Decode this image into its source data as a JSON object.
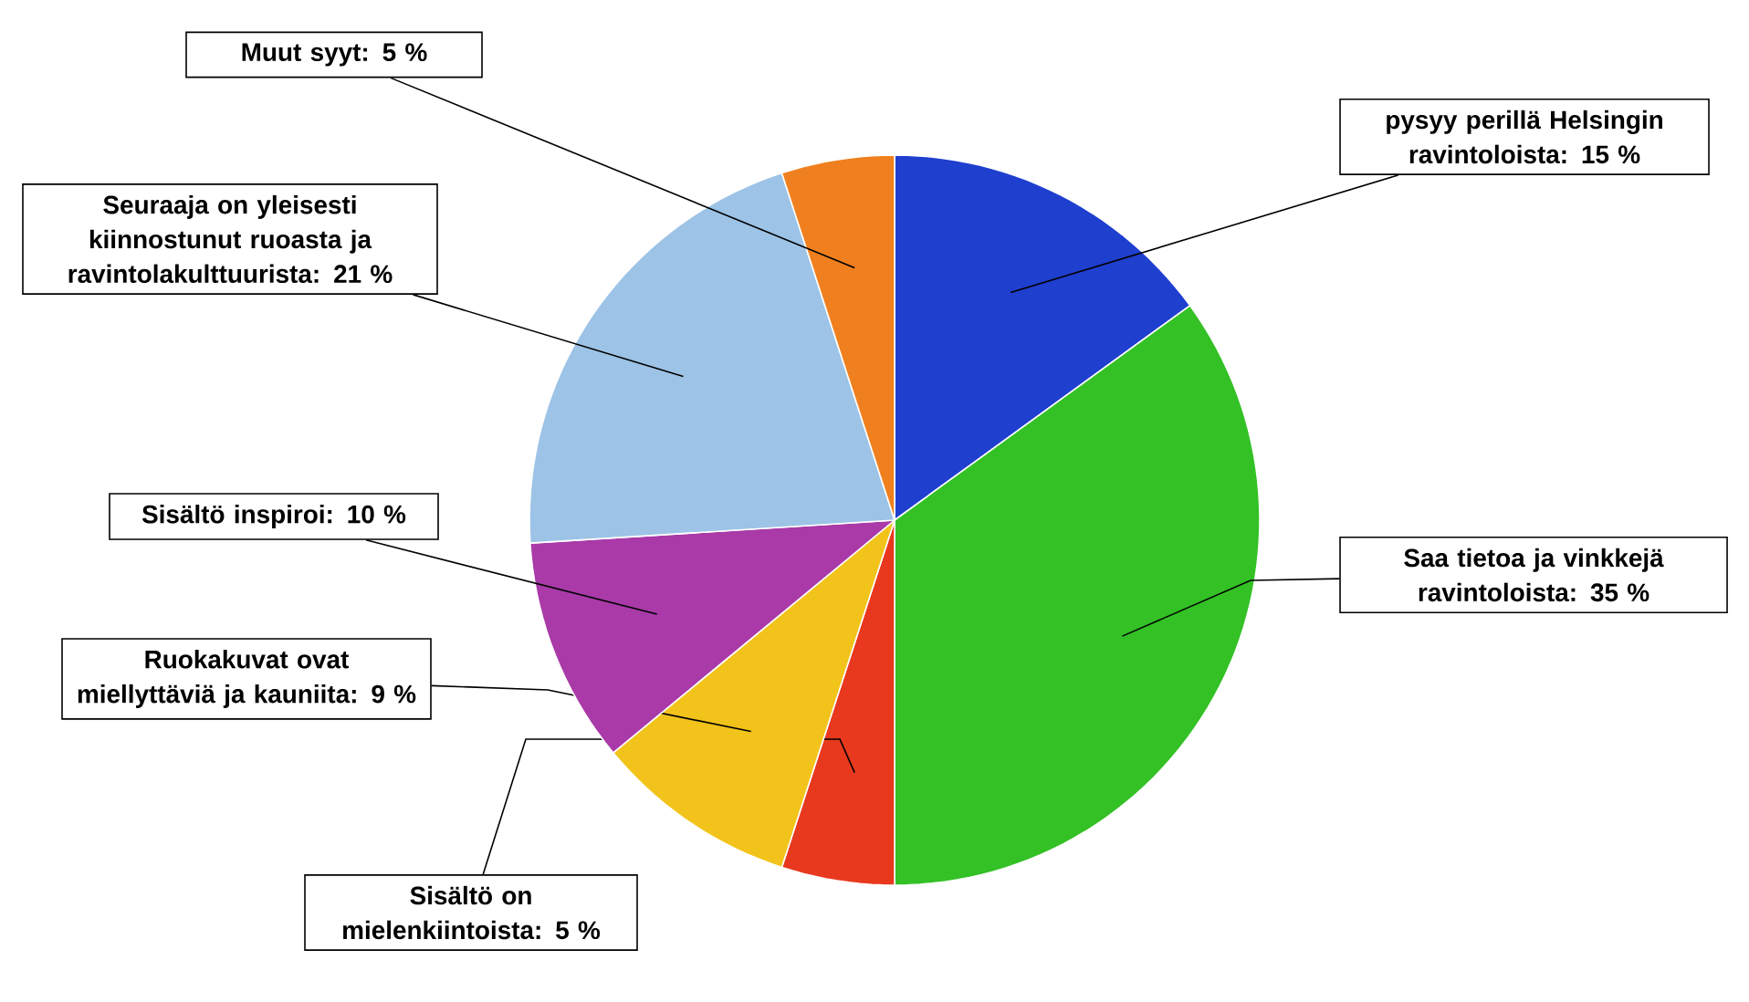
{
  "chart_data": {
    "type": "pie",
    "categories": [
      "pysyy perillä Helsingin ravintoloista",
      "Saa tietoa ja vinkkejä ravintoloista",
      "Sisältö on mielenkiintoista",
      "Ruokakuvat ovat miellyttäviä ja kauniita",
      "Sisältö inspiroi",
      "Seuraaja on yleisesti kiinnostunut ruoasta ja ravintolakulttuurista",
      "Muut syyt"
    ],
    "values": [
      15,
      35,
      5,
      9,
      10,
      21,
      5
    ],
    "value_labels": [
      ": 15 %",
      ": 35 %",
      ": 5 %",
      ": 9 %",
      ": 10 %",
      ": 21 %",
      ": 5 %"
    ],
    "colors": [
      "#1f3fcf",
      "#33c125",
      "#e8391e",
      "#f2c31a",
      "#a93aa8",
      "#9dc3e6",
      "#f0801f"
    ]
  }
}
